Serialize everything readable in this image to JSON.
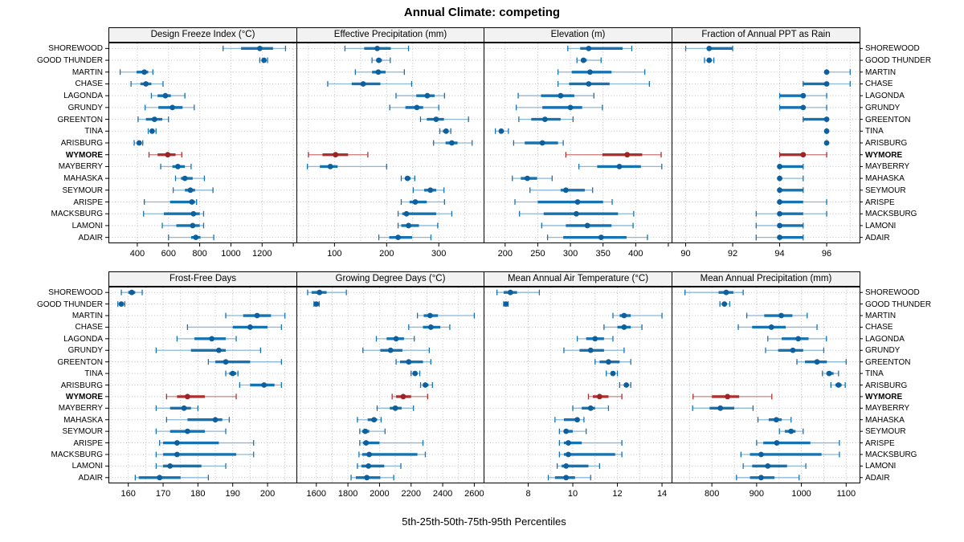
{
  "title": "Annual Climate: competing",
  "xlabel": "5th-25th-50th-75th-95th Percentiles",
  "stations": [
    "SHOREWOOD",
    "GOOD THUNDER",
    "MARTIN",
    "CHASE",
    "LAGONDA",
    "GRUNDY",
    "GREENTON",
    "TINA",
    "ARISBURG",
    "WYMORE",
    "MAYBERRY",
    "MAHASKA",
    "SEYMOUR",
    "ARISPE",
    "MACKSBURG",
    "LAMONI",
    "ADAIR"
  ],
  "highlighted_station": "WYMORE",
  "percentile_order": [
    "5th",
    "25th",
    "50th",
    "75th",
    "95th"
  ],
  "colors": {
    "blue": "#1673b1",
    "blue_dot": "#0d5f9e",
    "blue_light": "#8cb8d8",
    "red": "#b03030",
    "red_dot": "#9e2424",
    "red_light": "#cc8484",
    "grid": "#c0c0c0",
    "strip_bg": "#f2f2f2",
    "border": "#000000"
  },
  "chart_data": [
    {
      "type": "dot-interval",
      "label": "Design Freeze Index (°C)",
      "row": 0,
      "col": 0,
      "axis": {
        "min": 215,
        "max": 1420,
        "grid": [
          400,
          600,
          800,
          1000,
          1200,
          1400
        ],
        "ticks": [
          [
            400,
            "400"
          ],
          [
            600,
            "600"
          ],
          [
            800,
            "800"
          ],
          [
            1000,
            "1000"
          ],
          [
            1200,
            "1200"
          ],
          [
            1400,
            ""
          ]
        ]
      },
      "values": [
        [
          950,
          1065,
          1185,
          1270,
          1350
        ],
        [
          1185,
          1205,
          1212,
          1220,
          1235
        ],
        [
          290,
          395,
          445,
          470,
          500
        ],
        [
          360,
          420,
          455,
          490,
          565
        ],
        [
          490,
          530,
          580,
          615,
          705
        ],
        [
          450,
          535,
          625,
          690,
          765
        ],
        [
          405,
          455,
          510,
          560,
          600
        ],
        [
          470,
          485,
          495,
          505,
          520
        ],
        [
          380,
          400,
          412,
          425,
          435
        ],
        [
          475,
          530,
          595,
          645,
          685
        ],
        [
          550,
          625,
          660,
          705,
          745
        ],
        [
          645,
          680,
          705,
          755,
          830
        ],
        [
          630,
          705,
          740,
          770,
          885
        ],
        [
          445,
          610,
          750,
          770,
          780
        ],
        [
          440,
          570,
          760,
          800,
          825
        ],
        [
          560,
          650,
          755,
          800,
          825
        ],
        [
          600,
          745,
          775,
          805,
          890
        ]
      ]
    },
    {
      "type": "dot-interval",
      "label": "Effective Precipitation (mm)",
      "row": 0,
      "col": 1,
      "axis": {
        "min": 27,
        "max": 386,
        "grid": [
          50,
          100,
          150,
          200,
          250,
          300,
          350
        ],
        "ticks": [
          [
            100,
            "100"
          ],
          [
            200,
            "200"
          ],
          [
            300,
            "300"
          ]
        ]
      },
      "values": [
        [
          120,
          157,
          182,
          208,
          242
        ],
        [
          172,
          180,
          185,
          191,
          207
        ],
        [
          140,
          172,
          184,
          198,
          234
        ],
        [
          87,
          133,
          155,
          188,
          248
        ],
        [
          218,
          257,
          278,
          292,
          311
        ],
        [
          206,
          236,
          258,
          270,
          300
        ],
        [
          265,
          277,
          295,
          310,
          357
        ],
        [
          302,
          308,
          314,
          319,
          323
        ],
        [
          290,
          313,
          325,
          336,
          364
        ],
        [
          50,
          77,
          102,
          126,
          164
        ],
        [
          48,
          72,
          92,
          106,
          200
        ],
        [
          228,
          235,
          240,
          246,
          254
        ],
        [
          251,
          272,
          284,
          295,
          310
        ],
        [
          228,
          244,
          255,
          277,
          311
        ],
        [
          222,
          230,
          238,
          295,
          325
        ],
        [
          222,
          228,
          242,
          262,
          298
        ],
        [
          185,
          205,
          222,
          249,
          285
        ]
      ]
    },
    {
      "type": "dot-interval",
      "label": "Elevation (m)",
      "row": 0,
      "col": 2,
      "axis": {
        "min": 167,
        "max": 455,
        "grid": [
          200,
          250,
          300,
          350,
          400,
          450
        ],
        "ticks": [
          [
            200,
            "200"
          ],
          [
            250,
            "250"
          ],
          [
            300,
            "300"
          ],
          [
            350,
            "350"
          ],
          [
            400,
            "400"
          ],
          [
            450,
            ""
          ]
        ]
      },
      "values": [
        [
          296,
          315,
          328,
          380,
          394
        ],
        [
          310,
          316,
          320,
          325,
          347
        ],
        [
          281,
          302,
          330,
          363,
          414
        ],
        [
          281,
          298,
          328,
          360,
          421
        ],
        [
          220,
          255,
          285,
          306,
          336
        ],
        [
          217,
          257,
          300,
          318,
          349
        ],
        [
          221,
          240,
          261,
          285,
          304
        ],
        [
          185,
          191,
          194,
          198,
          205
        ],
        [
          213,
          230,
          257,
          281,
          289
        ],
        [
          293,
          349,
          387,
          410,
          439
        ],
        [
          313,
          341,
          375,
          408,
          440
        ],
        [
          211,
          224,
          234,
          249,
          272
        ],
        [
          238,
          285,
          293,
          322,
          334
        ],
        [
          215,
          250,
          311,
          350,
          364
        ],
        [
          222,
          259,
          309,
          373,
          397
        ],
        [
          256,
          293,
          326,
          363,
          396
        ],
        [
          265,
          289,
          347,
          386,
          418
        ]
      ]
    },
    {
      "type": "dot-interval",
      "label": "Fraction of Annual PPT as Rain",
      "row": 0,
      "col": 3,
      "axis": {
        "min": 89.4,
        "max": 97.4,
        "grid": [
          90,
          91,
          92,
          93,
          94,
          95,
          96,
          97
        ],
        "ticks": [
          [
            90,
            "90"
          ],
          [
            92,
            "92"
          ],
          [
            94,
            "94"
          ],
          [
            96,
            "96"
          ]
        ]
      },
      "values": [
        [
          90,
          91,
          91,
          92,
          92
        ],
        [
          90.8,
          91,
          91,
          91,
          91.2
        ],
        [
          96,
          96,
          96,
          96,
          97
        ],
        [
          95,
          95,
          96,
          96,
          97
        ],
        [
          94,
          94,
          95,
          95,
          96
        ],
        [
          94,
          94,
          95,
          95,
          96
        ],
        [
          95,
          95,
          96,
          96,
          96
        ],
        [
          96,
          96,
          96,
          96,
          96
        ],
        [
          96,
          96,
          96,
          96,
          96
        ],
        [
          94,
          94,
          95,
          95,
          96
        ],
        [
          94,
          94,
          94,
          95,
          95
        ],
        [
          94,
          94,
          94,
          94,
          95
        ],
        [
          94,
          94,
          94,
          95,
          95
        ],
        [
          94,
          94,
          94,
          95,
          96
        ],
        [
          93,
          94,
          94,
          95,
          96
        ],
        [
          93,
          94,
          94,
          95,
          95
        ],
        [
          93,
          94,
          94,
          95,
          95
        ]
      ]
    },
    {
      "type": "dot-interval",
      "label": "Frost-Free Days",
      "row": 1,
      "col": 0,
      "axis": {
        "min": 154.3,
        "max": 208.3,
        "grid": [
          155,
          160,
          165,
          170,
          175,
          180,
          185,
          190,
          195,
          200,
          205
        ],
        "ticks": [
          [
            160,
            "160"
          ],
          [
            170,
            "170"
          ],
          [
            180,
            "180"
          ],
          [
            190,
            "190"
          ],
          [
            200,
            "200"
          ]
        ]
      },
      "values": [
        [
          158,
          160,
          161,
          162,
          164
        ],
        [
          157,
          158,
          158,
          158.5,
          159
        ],
        [
          188,
          193,
          197,
          201,
          205
        ],
        [
          177,
          190,
          195,
          200,
          204
        ],
        [
          174,
          179,
          184,
          188,
          191
        ],
        [
          168,
          178,
          186,
          188,
          198
        ],
        [
          183,
          185,
          188,
          195,
          204
        ],
        [
          188,
          189,
          190,
          191,
          191.5
        ],
        [
          192,
          195,
          199,
          202,
          204
        ],
        [
          171,
          174,
          177,
          182,
          191
        ],
        [
          168,
          172,
          176,
          178,
          180
        ],
        [
          171,
          177,
          185,
          187,
          189
        ],
        [
          168,
          172,
          177,
          182,
          188
        ],
        [
          169,
          170,
          174,
          186,
          196
        ],
        [
          168,
          170,
          174,
          191,
          196
        ],
        [
          168,
          170,
          172,
          181,
          188
        ],
        [
          162,
          163,
          169,
          175,
          183
        ]
      ]
    },
    {
      "type": "dot-interval",
      "label": "Growing Degree Days (°C)",
      "row": 1,
      "col": 1,
      "axis": {
        "min": 1474,
        "max": 2659,
        "grid": [
          1500,
          1600,
          1700,
          1800,
          1900,
          2000,
          2100,
          2200,
          2300,
          2400,
          2500,
          2600
        ],
        "ticks": [
          [
            1600,
            "1600"
          ],
          [
            1800,
            "1800"
          ],
          [
            2000,
            "2000"
          ],
          [
            2200,
            "2200"
          ],
          [
            2400,
            "2400"
          ],
          [
            2600,
            "2600"
          ]
        ]
      },
      "values": [
        [
          1545,
          1570,
          1620,
          1665,
          1790
        ],
        [
          1585,
          1595,
          1600,
          1608,
          1618
        ],
        [
          2240,
          2280,
          2320,
          2370,
          2600
        ],
        [
          2185,
          2275,
          2325,
          2385,
          2445
        ],
        [
          1980,
          2045,
          2105,
          2155,
          2220
        ],
        [
          1895,
          2005,
          2070,
          2145,
          2315
        ],
        [
          2105,
          2130,
          2185,
          2275,
          2325
        ],
        [
          2200,
          2215,
          2225,
          2235,
          2255
        ],
        [
          2260,
          2275,
          2290,
          2310,
          2335
        ],
        [
          2080,
          2105,
          2150,
          2200,
          2305
        ],
        [
          1985,
          2065,
          2100,
          2140,
          2215
        ],
        [
          1860,
          1925,
          1965,
          1985,
          2010
        ],
        [
          1875,
          1890,
          1910,
          1935,
          2035
        ],
        [
          1875,
          1895,
          1915,
          2000,
          2275
        ],
        [
          1870,
          1890,
          1935,
          2240,
          2290
        ],
        [
          1860,
          1885,
          1930,
          2030,
          2135
        ],
        [
          1820,
          1850,
          1920,
          2005,
          2090
        ]
      ]
    },
    {
      "type": "dot-interval",
      "label": "Mean Annual Air Temperature (°C)",
      "row": 1,
      "col": 2,
      "axis": {
        "min": 6.0,
        "max": 14.43,
        "grid": [
          7,
          8,
          9,
          10,
          11,
          12,
          13,
          14
        ],
        "ticks": [
          [
            8,
            "8"
          ],
          [
            10,
            "10"
          ],
          [
            12,
            "12"
          ],
          [
            14,
            "14"
          ]
        ]
      },
      "values": [
        [
          6.6,
          6.9,
          7.2,
          7.5,
          8.5
        ],
        [
          6.9,
          7.0,
          7.0,
          7.1,
          7.1
        ],
        [
          11.8,
          12.1,
          12.3,
          12.6,
          14.0
        ],
        [
          11.4,
          12.0,
          12.3,
          12.6,
          13.1
        ],
        [
          10.2,
          10.6,
          11.0,
          11.4,
          11.8
        ],
        [
          9.6,
          10.3,
          10.8,
          11.4,
          12.3
        ],
        [
          11.0,
          11.2,
          11.6,
          12.1,
          12.6
        ],
        [
          11.5,
          11.7,
          11.8,
          11.9,
          12.0
        ],
        [
          12.1,
          12.3,
          12.4,
          12.5,
          12.6
        ],
        [
          10.7,
          10.9,
          11.2,
          11.6,
          12.2
        ],
        [
          10.0,
          10.4,
          10.8,
          11.0,
          11.6
        ],
        [
          9.2,
          9.6,
          10.2,
          10.3,
          10.5
        ],
        [
          9.4,
          9.6,
          9.7,
          10.0,
          10.6
        ],
        [
          9.4,
          9.6,
          9.8,
          10.4,
          12.2
        ],
        [
          9.4,
          9.6,
          9.8,
          11.9,
          12.2
        ],
        [
          9.3,
          9.5,
          9.7,
          10.7,
          11.2
        ],
        [
          8.9,
          9.2,
          9.7,
          10.1,
          10.8
        ]
      ]
    },
    {
      "type": "dot-interval",
      "label": "Mean Annual Precipitation (mm)",
      "row": 1,
      "col": 3,
      "axis": {
        "min": 710,
        "max": 1130,
        "grid": [
          750,
          800,
          850,
          900,
          950,
          1000,
          1050,
          1100
        ],
        "ticks": [
          [
            800,
            "800"
          ],
          [
            900,
            "900"
          ],
          [
            1000,
            "1000"
          ],
          [
            1100,
            "1100"
          ]
        ]
      },
      "values": [
        [
          740,
          815,
          832,
          848,
          870
        ],
        [
          818,
          825,
          828,
          831,
          840
        ],
        [
          878,
          917,
          955,
          980,
          1013
        ],
        [
          859,
          890,
          933,
          965,
          1035
        ],
        [
          925,
          956,
          993,
          1016,
          1056
        ],
        [
          920,
          948,
          981,
          1004,
          1050
        ],
        [
          990,
          1008,
          1035,
          1057,
          1100
        ],
        [
          1047,
          1056,
          1062,
          1072,
          1083
        ],
        [
          1066,
          1076,
          1083,
          1090,
          1098
        ],
        [
          758,
          800,
          835,
          861,
          934
        ],
        [
          757,
          795,
          819,
          850,
          892
        ],
        [
          903,
          927,
          944,
          956,
          977
        ],
        [
          951,
          963,
          977,
          987,
          1004
        ],
        [
          900,
          915,
          945,
          1020,
          1085
        ],
        [
          865,
          885,
          910,
          1045,
          1085
        ],
        [
          870,
          890,
          925,
          968,
          1010
        ],
        [
          855,
          885,
          910,
          940,
          995
        ]
      ]
    }
  ]
}
